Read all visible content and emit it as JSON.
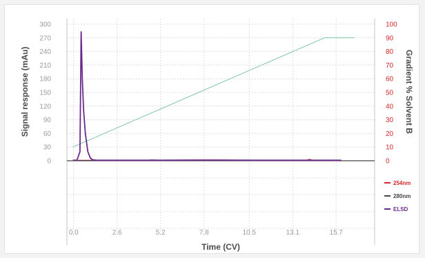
{
  "chart_data": {
    "type": "line",
    "xlabel": "Time (CV)",
    "ylabel": "Signal response (mAu)",
    "y2label": "Gradient % Solvent B",
    "x_ticks": [
      "0.0",
      "2.6",
      "5.2",
      "7.8",
      "10.5",
      "13.1",
      "15.7"
    ],
    "y_ticks": [
      "300",
      "270",
      "240",
      "210",
      "180",
      "150",
      "120",
      "90",
      "60",
      "30",
      "0"
    ],
    "y2_ticks": [
      "100",
      "90",
      "80",
      "70",
      "60",
      "50",
      "40",
      "30",
      "20",
      "10",
      "0"
    ],
    "xlim": [
      -0.4,
      18.0
    ],
    "ylim": [
      0,
      300
    ],
    "y2lim": [
      0,
      100
    ],
    "grid": true,
    "legend_position": "bottom-right",
    "series": [
      {
        "name": "254nm",
        "color": "#d6262b",
        "axis": "left",
        "x": [
          -0.05,
          0.3,
          1.0,
          3.0,
          5.0,
          7.0,
          9.0,
          11.0,
          13.0,
          13.9,
          14.1,
          14.3,
          16.0
        ],
        "y": [
          0,
          1,
          1,
          1,
          1,
          1.5,
          1.5,
          1,
          1,
          1,
          3,
          1,
          0
        ]
      },
      {
        "name": "280nm",
        "color": "#444444",
        "axis": "left",
        "x": [
          -0.05,
          1.0,
          1.3,
          1.4,
          3.0,
          4.5,
          4.6,
          6.0,
          8.0,
          10.0,
          12.0,
          14.0,
          16.0
        ],
        "y": [
          0.5,
          0.5,
          2,
          0.5,
          0.5,
          0.5,
          2,
          0.5,
          0.5,
          0.5,
          0.5,
          0.5,
          0.5
        ]
      },
      {
        "name": "ELSD",
        "color": "#6a2a8c",
        "axis": "left",
        "x": [
          -0.05,
          0.2,
          0.38,
          0.45,
          0.52,
          0.6,
          0.7,
          0.85,
          1.0,
          1.1,
          1.2,
          1.3,
          2.0,
          5.0,
          8.0,
          11.0,
          14.0,
          16.0
        ],
        "y": [
          1,
          1,
          20,
          283,
          180,
          110,
          60,
          20,
          6,
          3,
          1.5,
          1,
          1,
          1,
          1.5,
          1,
          1,
          1
        ]
      },
      {
        "name": "Gradient",
        "color": "#7cc6a1",
        "axis": "right",
        "x": [
          -0.05,
          15.0,
          16.8
        ],
        "y": [
          10,
          90,
          90
        ]
      }
    ]
  }
}
